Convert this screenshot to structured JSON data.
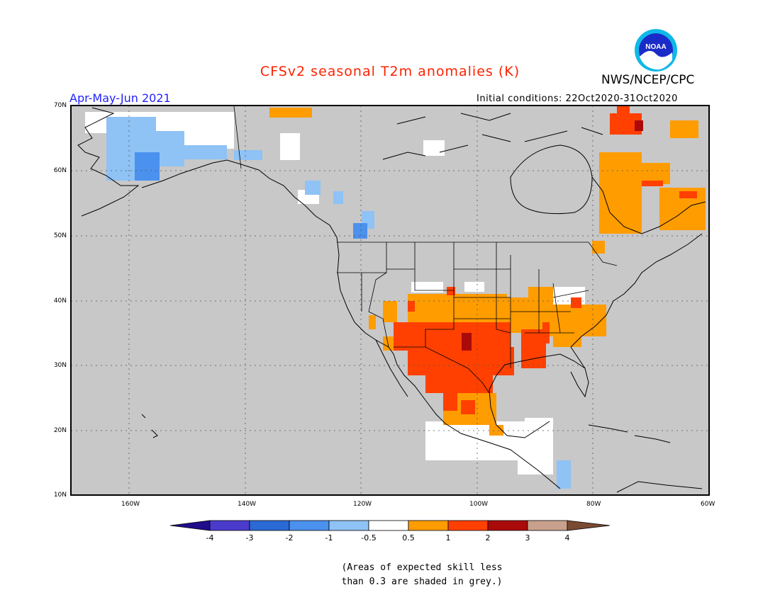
{
  "title": "CFSv2 seasonal T2m anomalies (K)",
  "agency": "NWS/NCEP/CPC",
  "logo_text": "NOAA",
  "season": "Apr-May-Jun 2021",
  "initial_conditions": "Initial conditions: 22Oct2020-31Oct2020",
  "map": {
    "region": "North America",
    "projection": "cylindrical equidistant",
    "lon_range": [
      -170,
      -60
    ],
    "lat_range": [
      10,
      70
    ],
    "lat_ticks": [
      "70N",
      "60N",
      "50N",
      "40N",
      "30N",
      "20N",
      "10N"
    ],
    "lon_ticks": [
      "160W",
      "140W",
      "120W",
      "100W",
      "80W",
      "60W"
    ],
    "grid": "dotted"
  },
  "colorbar": {
    "labels": [
      "-4",
      "-3",
      "-2",
      "-1",
      "-0.5",
      "0.5",
      "1",
      "2",
      "3",
      "4"
    ],
    "colors": [
      "#1f0d8c",
      "#4a3bcc",
      "#2b6ad4",
      "#4b91ee",
      "#8fc2f5",
      "#ffffff",
      "#ff9c00",
      "#ff4000",
      "#aa0a0a",
      "#c8a08c",
      "#7a4a32"
    ]
  },
  "no_skill_color": "#c8c8c8",
  "note_line1": "(Areas of expected skill less",
  "note_line2": "than 0.3 are shaded in grey.)"
}
